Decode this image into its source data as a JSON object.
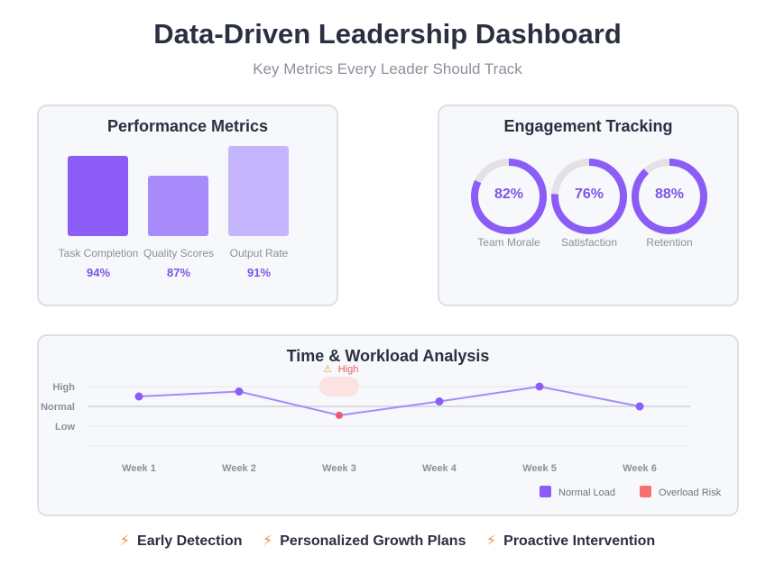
{
  "header": {
    "title": "Data-Driven Leadership Dashboard",
    "subtitle": "Key Metrics Every Leader Should Track"
  },
  "performance": {
    "title": "Performance Metrics",
    "bars": [
      {
        "label": "Task Completion",
        "value": 94,
        "value_text": "94%",
        "color": "#8b5cf6"
      },
      {
        "label": "Quality Scores",
        "value": 87,
        "value_text": "87%",
        "color": "#a78bfa"
      },
      {
        "label": "Output Rate",
        "value": 91,
        "value_text": "91%",
        "color": "#c4b5fd"
      }
    ]
  },
  "engagement": {
    "title": "Engagement Tracking",
    "rings": [
      {
        "label": "Team Morale",
        "value": 82,
        "value_text": "82%"
      },
      {
        "label": "Satisfaction",
        "value": 76,
        "value_text": "76%"
      },
      {
        "label": "Retention",
        "value": 88,
        "value_text": "88%"
      }
    ],
    "ring_color": "#8b5cf6",
    "track_color": "#e2e2e6"
  },
  "chart_data": {
    "type": "line",
    "title": "Time & Workload Analysis",
    "x": [
      "Week 1",
      "Week 2",
      "Week 3",
      "Week 4",
      "Week 5",
      "Week 6"
    ],
    "y_ticks": [
      "High",
      "Normal",
      "Low"
    ],
    "series": [
      {
        "name": "Normal Load",
        "values": [
          0.5,
          0.75,
          -0.45,
          0.25,
          1.0,
          0.0
        ],
        "color": "#8b5cf6"
      }
    ],
    "overload_points": [
      2
    ],
    "annotation": {
      "text": "High",
      "icon": "warning-icon",
      "week_index": 2
    },
    "legend": [
      {
        "name": "Normal Load",
        "color": "#8b5cf6"
      },
      {
        "name": "Overload Risk",
        "color": "#f87171"
      }
    ],
    "legend_position": "bottom-right",
    "grid": true,
    "ylim": [
      -2,
      2
    ]
  },
  "footer": {
    "items": [
      {
        "icon": "lightning-icon",
        "label": "Early Detection"
      },
      {
        "icon": "lightning-icon",
        "label": "Personalized Growth Plans"
      },
      {
        "icon": "lightning-icon",
        "label": "Proactive Intervention"
      }
    ]
  }
}
